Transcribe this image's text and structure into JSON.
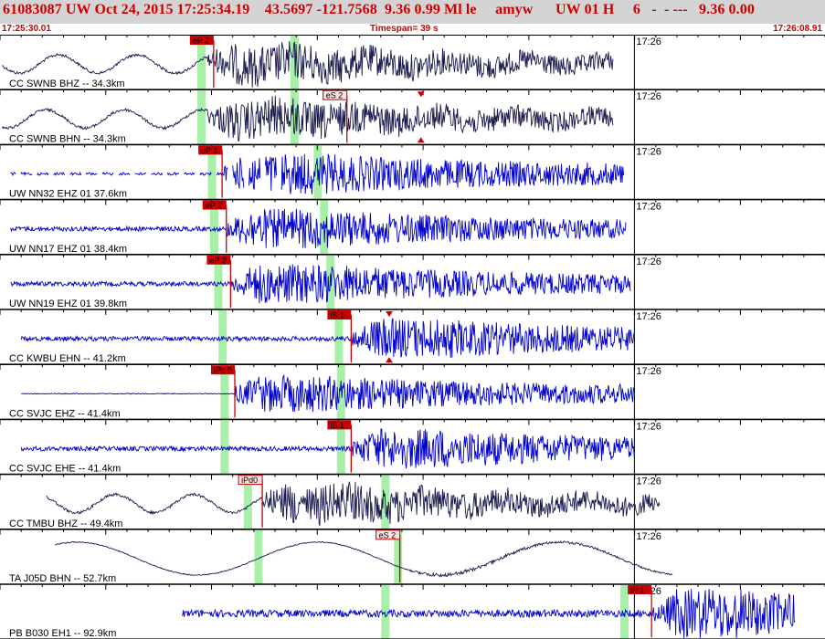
{
  "header": {
    "title": "61083087 UW Oct 24, 2015 17:25:34.19    43.5697 -121.7568  9.36 0.99 Ml le     amyw      UW 01 H     6   -  - ---   9.36 0.00",
    "start_time": "17:25:30.01",
    "timespan": "Timespan=  39 s",
    "end_time": "17:26:08.91"
  },
  "colors": {
    "header_bg": "#d4d4d4",
    "header_text": "#cc0000",
    "trace_blue": "#0000cc",
    "trace_dark": "#1a1a4d",
    "pick_red": "#cc0000",
    "window_green": "#a8f0a8"
  },
  "chart_data": {
    "type": "line",
    "x_range": [
      0,
      39
    ],
    "x_unit": "s",
    "minute_mark_label": "17:26",
    "minute_mark_x": 29.99,
    "tracks": [
      {
        "label": "CC SWNB BHZ -- 34.3km",
        "color": "dark",
        "kind": "mixed",
        "onset": 9.8,
        "start": 0.1,
        "end": 29.0,
        "green": [
          9.5,
          13.9
        ],
        "picks": [
          {
            "label": "eP 2",
            "x": 10.1,
            "style": "filled"
          }
        ],
        "markers": []
      },
      {
        "label": "CC SWNB BHN -- 34.3km",
        "color": "dark",
        "kind": "mixed",
        "onset": 9.8,
        "start": 0.1,
        "end": 29.0,
        "green": [
          9.5,
          13.9
        ],
        "picks": [
          {
            "label": "eS 2",
            "x": 16.4,
            "style": "outline"
          }
        ],
        "markers": [
          19.9
        ]
      },
      {
        "label": "UW NN32 EHZ 01 37.6km",
        "color": "blue",
        "kind": "gappy",
        "onset": 10.6,
        "start": 0.5,
        "end": 29.5,
        "green": [
          10.0,
          15.0
        ],
        "picks": [
          {
            "label": "eP 1",
            "x": 10.5,
            "style": "filled"
          }
        ],
        "markers": []
      },
      {
        "label": "UW NN17 EHZ 01 38.4km",
        "color": "blue",
        "kind": "noise",
        "onset": 10.7,
        "start": 0.5,
        "end": 29.6,
        "green": [
          10.1,
          15.3
        ],
        "picks": [
          {
            "label": "eP 2",
            "x": 10.7,
            "style": "filled"
          }
        ],
        "markers": []
      },
      {
        "label": "UW NN19 EHZ 01 39.8km",
        "color": "blue",
        "kind": "noise",
        "onset": 10.9,
        "start": 0.5,
        "end": 29.8,
        "green": [
          10.3,
          15.6
        ],
        "picks": [
          {
            "label": "eP 2",
            "x": 10.9,
            "style": "filled"
          }
        ],
        "markers": []
      },
      {
        "label": "CC KWBU EHN -- 41.2km",
        "color": "blue",
        "kind": "noise",
        "onset": 16.6,
        "start": 1.0,
        "end": 30.0,
        "green": [
          10.5,
          16.0
        ],
        "picks": [
          {
            "label": "iS 1",
            "x": 16.6,
            "style": "filled"
          }
        ],
        "markers": [
          18.4
        ]
      },
      {
        "label": "CC SVJC EHZ -- 41.4km",
        "color": "blue",
        "kind": "step",
        "onset": 11.1,
        "start": 1.0,
        "end": 30.0,
        "green": [
          10.6,
          16.1
        ],
        "picks": [
          {
            "label": "iPc 0",
            "x": 11.1,
            "style": "filled"
          }
        ],
        "markers": []
      },
      {
        "label": "CC SVJC EHE -- 41.4km",
        "color": "blue",
        "kind": "noise",
        "onset": 16.6,
        "start": 1.0,
        "end": 30.0,
        "green": [
          10.6,
          16.1
        ],
        "picks": [
          {
            "label": "iS 1",
            "x": 16.6,
            "style": "filled"
          }
        ],
        "markers": []
      },
      {
        "label": "CC TMBU BHZ -- 49.4km",
        "color": "dark",
        "kind": "mixed",
        "onset": 12.4,
        "start": 2.2,
        "end": 31.2,
        "green": [
          11.7,
          18.2
        ],
        "picks": [
          {
            "label": "iPd0",
            "x": 12.4,
            "style": "outline"
          }
        ],
        "markers": []
      },
      {
        "label": "TA J05D BHN -- 52.7km",
        "color": "dark",
        "kind": "slow",
        "onset": 18.9,
        "start": 2.6,
        "end": 31.8,
        "green": [
          12.2,
          18.8
        ],
        "picks": [
          {
            "label": "eS 2",
            "x": 18.9,
            "style": "outline"
          }
        ],
        "markers": []
      },
      {
        "label": "PB B030 EH1 -- 92.9km",
        "color": "blue",
        "kind": "late",
        "onset": 30.8,
        "start": 8.6,
        "end": 37.6,
        "green": [
          18.2,
          29.5
        ],
        "picks": [
          {
            "label": "iP 1",
            "x": 30.8,
            "style": "filled"
          }
        ],
        "markers": []
      }
    ]
  }
}
